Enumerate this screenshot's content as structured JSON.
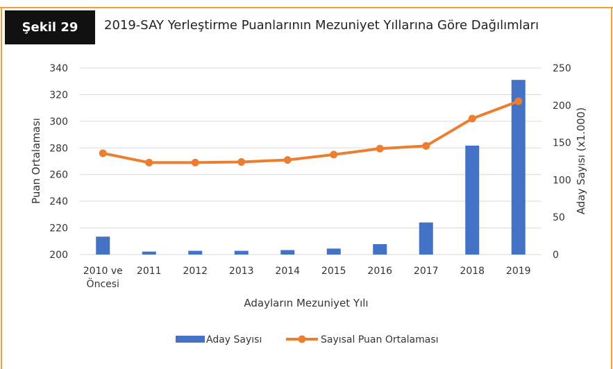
{
  "figure": {
    "label": "Şekil 29",
    "title": "2019-SAY Yerleştirme Puanlarının Mezuniyet Yıllarına Göre Dağılımları"
  },
  "colors": {
    "frame": "#f0a030",
    "bar": "#4472c4",
    "line": "#ed7d31",
    "grid": "#d9d9d9",
    "badge": "#111111"
  },
  "chart_data": {
    "type": "bar",
    "categories": [
      [
        "2010 ve",
        "Öncesi"
      ],
      [
        "2011"
      ],
      [
        "2012"
      ],
      [
        "2013"
      ],
      [
        "2014"
      ],
      [
        "2015"
      ],
      [
        "2016"
      ],
      [
        "2017"
      ],
      [
        "2018"
      ],
      [
        "2019"
      ]
    ],
    "xlabel": "Adayların Mezuniyet Yılı",
    "ylabel_left": "Puan Ortalaması",
    "ylabel_right": "Aday Sayısı (x1.000)",
    "ylim_left": [
      200,
      340
    ],
    "yticks_left": [
      200,
      220,
      240,
      260,
      280,
      300,
      320,
      340
    ],
    "ylim_right": [
      0,
      250
    ],
    "yticks_right": [
      0,
      50,
      100,
      150,
      200,
      250
    ],
    "grid": true,
    "legend_position": "bottom",
    "series": [
      {
        "name": "Aday Sayısı",
        "type": "bar",
        "axis": "right",
        "values": [
          24,
          4,
          5,
          5,
          6,
          8,
          14,
          43,
          146,
          234
        ]
      },
      {
        "name": "Sayısal Puan Ortalaması",
        "type": "line",
        "axis": "left",
        "values": [
          276,
          269,
          269,
          269.5,
          271,
          275,
          279.5,
          281.5,
          302,
          315
        ]
      }
    ]
  }
}
